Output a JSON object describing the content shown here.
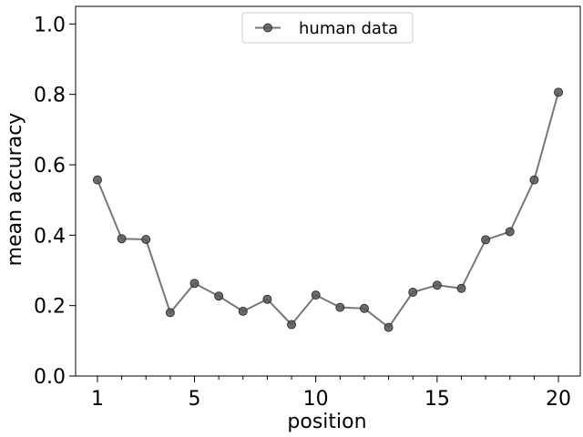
{
  "chart_data": {
    "type": "line",
    "xlabel": "position",
    "ylabel": "mean accuracy",
    "xlim": [
      0.1,
      20.9
    ],
    "ylim": [
      0.0,
      1.05
    ],
    "x_ticks_major": [
      1,
      5,
      10,
      15,
      20
    ],
    "x_ticks_minor": [
      2,
      3,
      4,
      6,
      7,
      8,
      9,
      11,
      12,
      13,
      14,
      16,
      17,
      18,
      19
    ],
    "y_ticks": [
      0.0,
      0.2,
      0.4,
      0.6,
      0.8,
      1.0
    ],
    "x_tick_labels": [
      "1",
      "5",
      "10",
      "15",
      "20"
    ],
    "y_tick_labels": [
      "0.0",
      "0.2",
      "0.4",
      "0.6",
      "0.8",
      "1.0"
    ],
    "grid": false,
    "legend": {
      "position": "top-center",
      "entries": [
        "human data"
      ]
    },
    "series": [
      {
        "name": "human data",
        "color": "#555555",
        "marker": "circle",
        "x": [
          1,
          2,
          3,
          4,
          5,
          6,
          7,
          8,
          9,
          10,
          11,
          12,
          13,
          14,
          15,
          16,
          17,
          18,
          19,
          20
        ],
        "y": [
          0.557,
          0.39,
          0.388,
          0.18,
          0.263,
          0.227,
          0.184,
          0.218,
          0.146,
          0.23,
          0.195,
          0.192,
          0.138,
          0.238,
          0.258,
          0.249,
          0.387,
          0.41,
          0.557,
          0.806
        ]
      }
    ]
  }
}
